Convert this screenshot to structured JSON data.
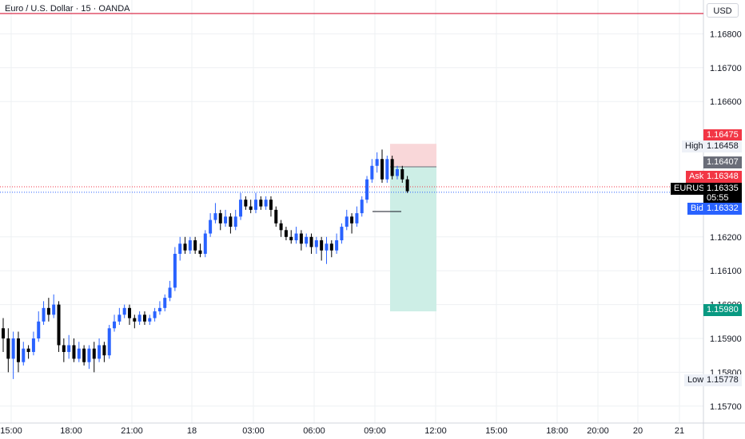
{
  "header": {
    "title": "Euro / U.S. Dollar · 15 · OANDA",
    "currency": "USD"
  },
  "price_axis": {
    "ticks": [
      "1.16800",
      "1.16700",
      "1.16600",
      "1.16200",
      "1.16100",
      "1.16000",
      "1.15900",
      "1.15800",
      "1.15700"
    ]
  },
  "time_axis": {
    "ticks": [
      "15:00",
      "18:00",
      "21:00",
      "18",
      "03:00",
      "06:00",
      "09:00",
      "12:00",
      "15:00",
      "18:00",
      "20:00",
      "20",
      "21"
    ]
  },
  "labels": {
    "sl_price": "1.16475",
    "high_label": "High",
    "high_value": "1.16458",
    "entry_price": "1.16407",
    "ask_label": "Ask",
    "ask_value": "1.16348",
    "symbol": "EURUSD",
    "last_value": "1.16335",
    "countdown": "05:55",
    "bid_label": "Bid",
    "bid_value": "1.16332",
    "tp_price": "1.15980",
    "low_label": "Low",
    "low_value": "1.15778"
  },
  "colors": {
    "up": "#2962ff",
    "down": "#000000",
    "grid": "#eef0f3",
    "sl_zone": "#f9d7d9",
    "tp_zone": "#cdeee6",
    "red_tag": "#f23645",
    "green_tag": "#089981",
    "gray_tag": "#6a6d78",
    "resistance": "#d81b3a"
  },
  "chart_data": {
    "type": "candlestick",
    "symbol": "EURUSD",
    "interval": "15",
    "ylim": [
      1.1565,
      1.169
    ],
    "resistance_level": 1.1686,
    "position": {
      "type": "short",
      "entry": 1.16407,
      "stop": 1.16475,
      "target": 1.1598
    },
    "ask": 1.16348,
    "bid": 1.16332,
    "last": 1.16335,
    "session_high": 1.16458,
    "session_low": 1.15778,
    "candles": [
      [
        1.1593,
        1.159,
        1.1596,
        1.1586
      ],
      [
        1.159,
        1.1584,
        1.1593,
        1.158
      ],
      [
        1.1584,
        1.159,
        1.1592,
        1.1578
      ],
      [
        1.159,
        1.1583,
        1.1592,
        1.158
      ],
      [
        1.1583,
        1.1587,
        1.1589,
        1.1582
      ],
      [
        1.1587,
        1.1586,
        1.1588,
        1.1584
      ],
      [
        1.1586,
        1.159,
        1.1592,
        1.1585
      ],
      [
        1.159,
        1.1595,
        1.1598,
        1.1589
      ],
      [
        1.1595,
        1.1599,
        1.1601,
        1.1594
      ],
      [
        1.1599,
        1.1597,
        1.1602,
        1.1595
      ],
      [
        1.1597,
        1.16,
        1.1603,
        1.1596
      ],
      [
        1.16,
        1.1588,
        1.1601,
        1.1586
      ],
      [
        1.1588,
        1.1586,
        1.159,
        1.1583
      ],
      [
        1.1586,
        1.1588,
        1.1591,
        1.1584
      ],
      [
        1.1588,
        1.1584,
        1.159,
        1.1583
      ],
      [
        1.1584,
        1.1587,
        1.1589,
        1.1583
      ],
      [
        1.1587,
        1.1583,
        1.1588,
        1.1582
      ],
      [
        1.1583,
        1.1587,
        1.1588,
        1.1581
      ],
      [
        1.1587,
        1.1584,
        1.1589,
        1.158
      ],
      [
        1.1584,
        1.1588,
        1.159,
        1.1583
      ],
      [
        1.1588,
        1.1585,
        1.1589,
        1.1583
      ],
      [
        1.1585,
        1.1593,
        1.1594,
        1.1584
      ],
      [
        1.1593,
        1.1595,
        1.1597,
        1.1592
      ],
      [
        1.1595,
        1.1597,
        1.1599,
        1.1594
      ],
      [
        1.1597,
        1.1599,
        1.16,
        1.1596
      ],
      [
        1.1599,
        1.1596,
        1.16,
        1.1594
      ],
      [
        1.1596,
        1.1595,
        1.1597,
        1.1593
      ],
      [
        1.1595,
        1.1597,
        1.1598,
        1.1594
      ],
      [
        1.1597,
        1.1595,
        1.1598,
        1.1594
      ],
      [
        1.1595,
        1.1596,
        1.1597,
        1.1594
      ],
      [
        1.1596,
        1.1598,
        1.1599,
        1.1595
      ],
      [
        1.1598,
        1.1599,
        1.1601,
        1.1597
      ],
      [
        1.1599,
        1.1602,
        1.1603,
        1.1598
      ],
      [
        1.1602,
        1.1605,
        1.1607,
        1.1601
      ],
      [
        1.1605,
        1.1615,
        1.1617,
        1.1604
      ],
      [
        1.1615,
        1.1618,
        1.162,
        1.1613
      ],
      [
        1.1618,
        1.1616,
        1.162,
        1.1615
      ],
      [
        1.1616,
        1.1619,
        1.162,
        1.1615
      ],
      [
        1.1619,
        1.1616,
        1.162,
        1.1615
      ],
      [
        1.1616,
        1.1615,
        1.1618,
        1.1614
      ],
      [
        1.1615,
        1.1621,
        1.1622,
        1.1614
      ],
      [
        1.1621,
        1.1625,
        1.1627,
        1.162
      ],
      [
        1.1625,
        1.1627,
        1.163,
        1.1624
      ],
      [
        1.1627,
        1.1624,
        1.1628,
        1.1622
      ],
      [
        1.1624,
        1.1626,
        1.1628,
        1.1623
      ],
      [
        1.1626,
        1.1623,
        1.1627,
        1.1621
      ],
      [
        1.1623,
        1.1626,
        1.1628,
        1.1622
      ],
      [
        1.1626,
        1.1631,
        1.1633,
        1.1625
      ],
      [
        1.1631,
        1.1629,
        1.1632,
        1.1628
      ],
      [
        1.1629,
        1.1628,
        1.1631,
        1.1627
      ],
      [
        1.1628,
        1.1631,
        1.1633,
        1.1627
      ],
      [
        1.1631,
        1.1629,
        1.1632,
        1.1628
      ],
      [
        1.1629,
        1.1631,
        1.1632,
        1.1628
      ],
      [
        1.1631,
        1.1628,
        1.1632,
        1.1626
      ],
      [
        1.1628,
        1.1624,
        1.1629,
        1.1623
      ],
      [
        1.1624,
        1.1622,
        1.1625,
        1.162
      ],
      [
        1.1622,
        1.162,
        1.1623,
        1.1619
      ],
      [
        1.162,
        1.1619,
        1.1622,
        1.1618
      ],
      [
        1.1619,
        1.1621,
        1.1623,
        1.1618
      ],
      [
        1.1621,
        1.1618,
        1.1622,
        1.1616
      ],
      [
        1.1618,
        1.162,
        1.1621,
        1.1617
      ],
      [
        1.162,
        1.1617,
        1.1621,
        1.1615
      ],
      [
        1.1617,
        1.1619,
        1.162,
        1.1615
      ],
      [
        1.1619,
        1.1616,
        1.162,
        1.1613
      ],
      [
        1.1616,
        1.1618,
        1.162,
        1.1612
      ],
      [
        1.1618,
        1.1616,
        1.1619,
        1.1614
      ],
      [
        1.1616,
        1.1619,
        1.1621,
        1.1615
      ],
      [
        1.1619,
        1.1623,
        1.1624,
        1.1618
      ],
      [
        1.1623,
        1.1626,
        1.1628,
        1.1622
      ],
      [
        1.1626,
        1.1624,
        1.1627,
        1.1621
      ],
      [
        1.1624,
        1.1627,
        1.1629,
        1.1623
      ],
      [
        1.1627,
        1.1631,
        1.1632,
        1.1626
      ],
      [
        1.1631,
        1.1637,
        1.1638,
        1.163
      ],
      [
        1.1637,
        1.1641,
        1.1643,
        1.1636
      ],
      [
        1.1641,
        1.1643,
        1.1645,
        1.1639
      ],
      [
        1.1643,
        1.1637,
        1.16458,
        1.1636
      ],
      [
        1.1637,
        1.1643,
        1.1644,
        1.1636
      ],
      [
        1.1643,
        1.1638,
        1.1644,
        1.1637
      ],
      [
        1.1638,
        1.164,
        1.1641,
        1.1637
      ],
      [
        1.164,
        1.1637,
        1.1641,
        1.1636
      ],
      [
        1.1637,
        1.16335,
        1.1638,
        1.1633
      ]
    ]
  }
}
